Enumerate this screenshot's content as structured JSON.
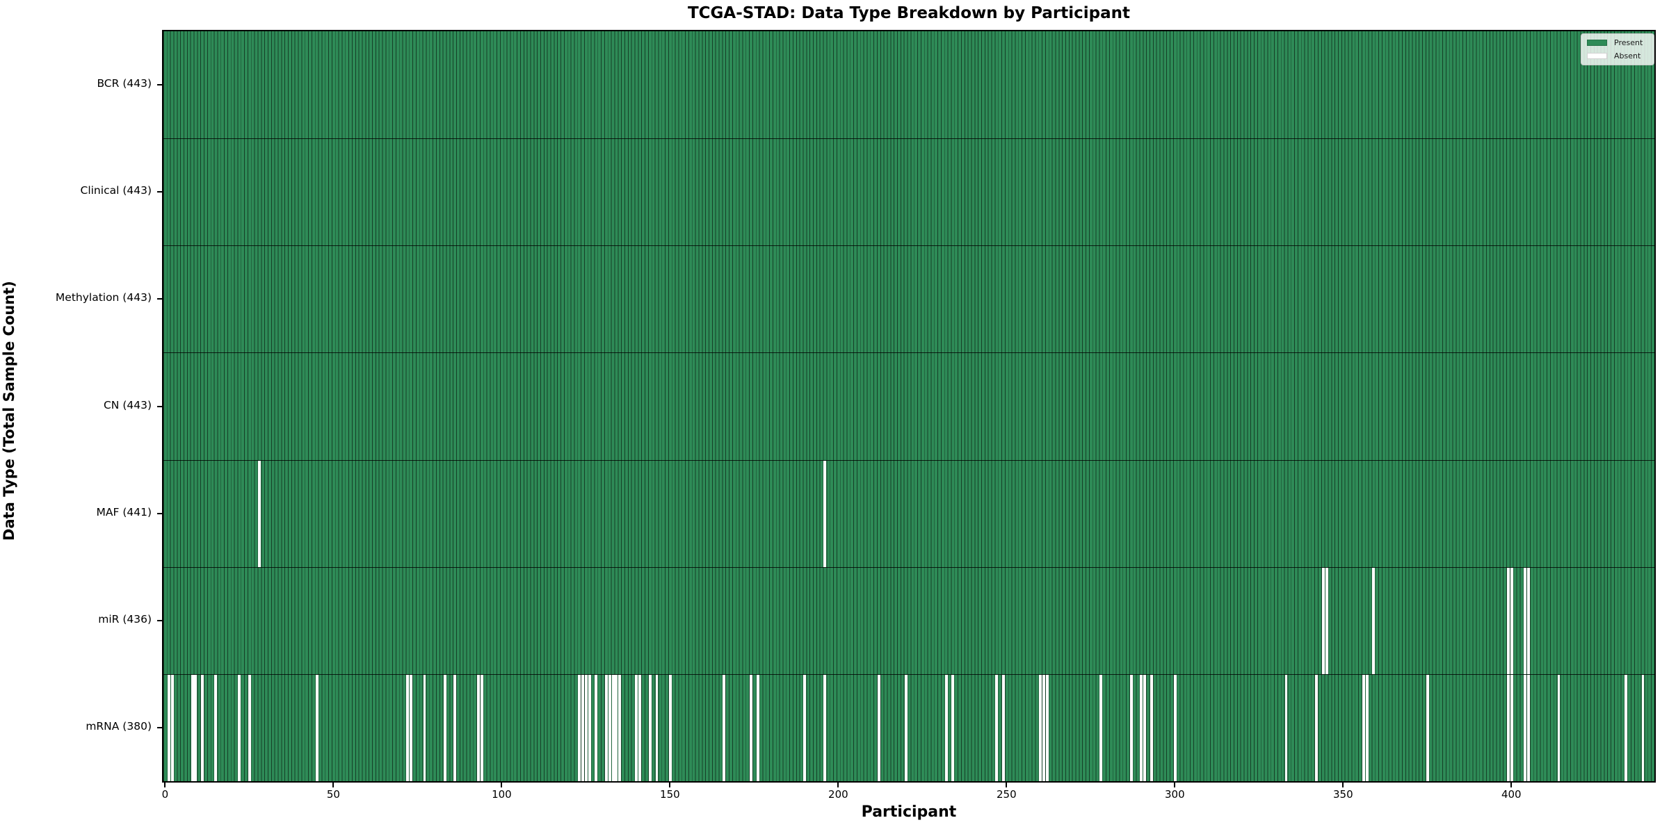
{
  "figure": {
    "title": "TCGA-STAD: Data Type Breakdown by Participant"
  },
  "legend": {
    "items": [
      {
        "label": "Present",
        "color": "#2e8b57"
      },
      {
        "label": "Absent",
        "color": "#ffffff"
      }
    ]
  },
  "chart_data": {
    "type": "heatmap",
    "title": "TCGA-STAD: Data Type Breakdown by Participant",
    "xlabel": "Participant",
    "ylabel": "Data Type (Total Sample Count)",
    "n_participants": 443,
    "x_ticks": [
      0,
      50,
      100,
      150,
      200,
      250,
      300,
      350,
      400
    ],
    "present_color": "#2e8b57",
    "absent_color": "#ffffff",
    "bar_edge_color": "rgba(0,0,0,0.55)",
    "row_separator_color": "rgba(0,0,0,0.8)",
    "legend_position": "upper right",
    "grid": false,
    "rows": [
      {
        "name": "bcr",
        "label": "BCR (443)",
        "total": 443,
        "absent": []
      },
      {
        "name": "clinical",
        "label": "Clinical (443)",
        "total": 443,
        "absent": []
      },
      {
        "name": "methylation",
        "label": "Methylation (443)",
        "total": 443,
        "absent": []
      },
      {
        "name": "cn",
        "label": "CN (443)",
        "total": 443,
        "absent": []
      },
      {
        "name": "maf",
        "label": "MAF (441)",
        "total": 441,
        "absent": [
          28,
          196
        ]
      },
      {
        "name": "mir",
        "label": "miR (436)",
        "total": 436,
        "absent": [
          344,
          345,
          359,
          399,
          400,
          404,
          405
        ]
      },
      {
        "name": "mrna",
        "label": "mRNA (380)",
        "total": 380,
        "absent": [
          1,
          2,
          8,
          9,
          11,
          15,
          22,
          25,
          45,
          72,
          73,
          77,
          83,
          86,
          93,
          94,
          123,
          124,
          125,
          126,
          128,
          131,
          132,
          133,
          134,
          135,
          140,
          141,
          144,
          146,
          150,
          166,
          174,
          176,
          190,
          196,
          212,
          220,
          232,
          234,
          247,
          249,
          260,
          261,
          262,
          278,
          287,
          290,
          291,
          293,
          300,
          333,
          342,
          356,
          357,
          375,
          399,
          400,
          404,
          405,
          414,
          434,
          439
        ]
      }
    ]
  }
}
